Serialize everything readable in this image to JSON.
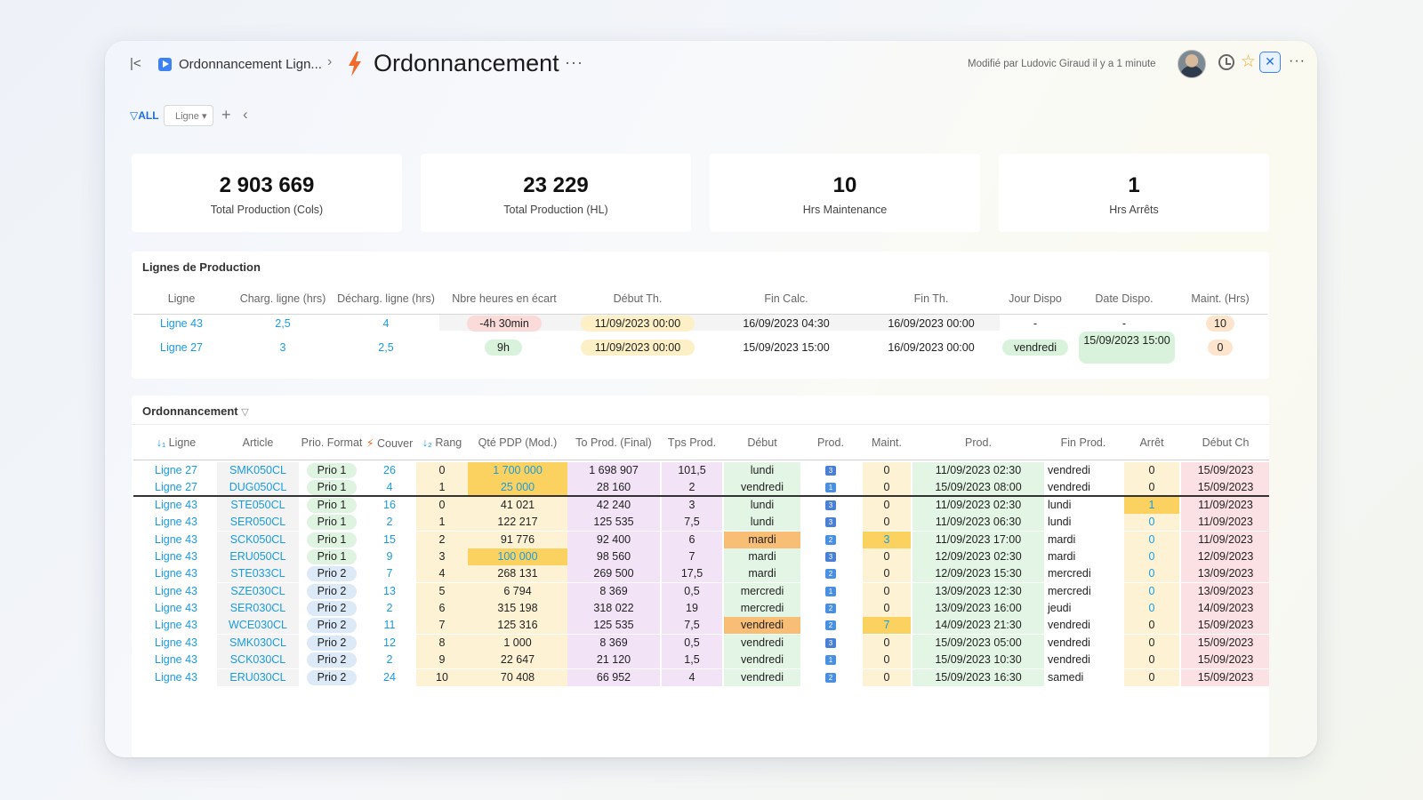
{
  "header": {
    "breadcrumb_parent": "Ordonnancement Lign...",
    "title": "Ordonnancement",
    "modified": "Modifié par Ludovic Giraud il y a 1 minute"
  },
  "filters": {
    "all_label": "ALL",
    "select_label": "Ligne ▾"
  },
  "kpis": [
    {
      "value": "2 903 669",
      "label": "Total Production (Cols)"
    },
    {
      "value": "23 229",
      "label": "Total Production (HL)"
    },
    {
      "value": "10",
      "label": "Hrs Maintenance"
    },
    {
      "value": "1",
      "label": "Hrs Arrêts"
    }
  ],
  "lignes": {
    "title": "Lignes de Production",
    "columns": [
      "Ligne",
      "Charg. ligne (hrs)",
      "Décharg. ligne (hrs)",
      "Nbre heures en écart",
      "Début Th.",
      "Fin Calc.",
      "Fin Th.",
      "Jour Dispo",
      "Date Dispo.",
      "Maint. (Hrs)"
    ],
    "rows": [
      [
        "Ligne 43",
        "2,5",
        "4",
        "-4h 30min",
        "11/09/2023 00:00",
        "16/09/2023 04:30",
        "16/09/2023 00:00",
        "-",
        "-",
        "10"
      ],
      [
        "Ligne 27",
        "3",
        "2,5",
        "9h",
        "11/09/2023 00:00",
        "15/09/2023 15:00",
        "16/09/2023 00:00",
        "vendredi",
        "15/09/2023 15:00",
        "0"
      ]
    ]
  },
  "ordo": {
    "title": "Ordonnancement",
    "columns": [
      "Ligne",
      "Article",
      "Prio. Format",
      "Couver",
      "Rang",
      "Qté PDP (Mod.)",
      "To Prod. (Final)",
      "Tps Prod.",
      "Début",
      "Prod.",
      "Maint.",
      "Prod.",
      "Fin Prod.",
      "Arrêt",
      "Début Ch"
    ],
    "rows": [
      {
        "ligne": "Ligne 27",
        "article": "SMK050CL",
        "prio": "Prio 1",
        "couver": "26",
        "rang": "0",
        "qte": "1 700 000",
        "toprod": "1 698 907",
        "tps": "101,5",
        "debut": "lundi",
        "prod": "3",
        "maint": "0",
        "prodt": "11/09/2023 02:30",
        "fin": "vendredi",
        "arret": "0",
        "debutch": "15/09/2023"
      },
      {
        "ligne": "Ligne 27",
        "article": "DUG050CL",
        "prio": "Prio 1",
        "couver": "4",
        "rang": "1",
        "qte": "25 000",
        "toprod": "28 160",
        "tps": "2",
        "debut": "vendredi",
        "prod": "1",
        "maint": "0",
        "prodt": "15/09/2023 08:00",
        "fin": "vendredi",
        "arret": "0",
        "debutch": "15/09/2023"
      },
      {
        "ligne": "Ligne 43",
        "article": "STE050CL",
        "prio": "Prio 1",
        "couver": "16",
        "rang": "0",
        "qte": "41 021",
        "toprod": "42 240",
        "tps": "3",
        "debut": "lundi",
        "prod": "3",
        "maint": "0",
        "prodt": "11/09/2023 02:30",
        "fin": "lundi",
        "arret": "1",
        "debutch": "11/09/2023"
      },
      {
        "ligne": "Ligne 43",
        "article": "SER050CL",
        "prio": "Prio 1",
        "couver": "2",
        "rang": "1",
        "qte": "122 217",
        "toprod": "125 535",
        "tps": "7,5",
        "debut": "lundi",
        "prod": "3",
        "maint": "0",
        "prodt": "11/09/2023 06:30",
        "fin": "lundi",
        "arret": "0",
        "debutch": "11/09/2023"
      },
      {
        "ligne": "Ligne 43",
        "article": "SCK050CL",
        "prio": "Prio 1",
        "couver": "15",
        "rang": "2",
        "qte": "91 776",
        "toprod": "92 400",
        "tps": "6",
        "debut": "mardi",
        "prod": "2",
        "maint": "3",
        "prodt": "11/09/2023 17:00",
        "fin": "mardi",
        "arret": "0",
        "debutch": "11/09/2023"
      },
      {
        "ligne": "Ligne 43",
        "article": "ERU050CL",
        "prio": "Prio 1",
        "couver": "9",
        "rang": "3",
        "qte": "100 000",
        "toprod": "98 560",
        "tps": "7",
        "debut": "mardi",
        "prod": "3",
        "maint": "0",
        "prodt": "12/09/2023 02:30",
        "fin": "mardi",
        "arret": "0",
        "debutch": "12/09/2023"
      },
      {
        "ligne": "Ligne 43",
        "article": "STE033CL",
        "prio": "Prio 2",
        "couver": "7",
        "rang": "4",
        "qte": "268 131",
        "toprod": "269 500",
        "tps": "17,5",
        "debut": "mardi",
        "prod": "2",
        "maint": "0",
        "prodt": "12/09/2023 15:30",
        "fin": "mercredi",
        "arret": "0",
        "debutch": "13/09/2023"
      },
      {
        "ligne": "Ligne 43",
        "article": "SZE030CL",
        "prio": "Prio 2",
        "couver": "13",
        "rang": "5",
        "qte": "6 794",
        "toprod": "8 369",
        "tps": "0,5",
        "debut": "mercredi",
        "prod": "1",
        "maint": "0",
        "prodt": "13/09/2023 12:30",
        "fin": "mercredi",
        "arret": "0",
        "debutch": "13/09/2023"
      },
      {
        "ligne": "Ligne 43",
        "article": "SER030CL",
        "prio": "Prio 2",
        "couver": "2",
        "rang": "6",
        "qte": "315 198",
        "toprod": "318 022",
        "tps": "19",
        "debut": "mercredi",
        "prod": "2",
        "maint": "0",
        "prodt": "13/09/2023 16:00",
        "fin": "jeudi",
        "arret": "0",
        "debutch": "14/09/2023"
      },
      {
        "ligne": "Ligne 43",
        "article": "WCE030CL",
        "prio": "Prio 2",
        "couver": "11",
        "rang": "7",
        "qte": "125 316",
        "toprod": "125 535",
        "tps": "7,5",
        "debut": "vendredi",
        "prod": "2",
        "maint": "7",
        "prodt": "14/09/2023 21:30",
        "fin": "vendredi",
        "arret": "0",
        "debutch": "15/09/2023"
      },
      {
        "ligne": "Ligne 43",
        "article": "SMK030CL",
        "prio": "Prio 2",
        "couver": "12",
        "rang": "8",
        "qte": "1 000",
        "toprod": "8 369",
        "tps": "0,5",
        "debut": "vendredi",
        "prod": "3",
        "maint": "0",
        "prodt": "15/09/2023 05:00",
        "fin": "vendredi",
        "arret": "0",
        "debutch": "15/09/2023"
      },
      {
        "ligne": "Ligne 43",
        "article": "SCK030CL",
        "prio": "Prio 2",
        "couver": "2",
        "rang": "9",
        "qte": "22 647",
        "toprod": "21 120",
        "tps": "1,5",
        "debut": "vendredi",
        "prod": "1",
        "maint": "0",
        "prodt": "15/09/2023 10:30",
        "fin": "vendredi",
        "arret": "0",
        "debutch": "15/09/2023"
      },
      {
        "ligne": "Ligne 43",
        "article": "ERU030CL",
        "prio": "Prio 2",
        "couver": "24",
        "rang": "10",
        "qte": "70 408",
        "toprod": "66 952",
        "tps": "4",
        "debut": "vendredi",
        "prod": "2",
        "maint": "0",
        "prodt": "15/09/2023 16:30",
        "fin": "samedi",
        "arret": "0",
        "debutch": "15/09/2023"
      }
    ]
  },
  "colors": {
    "accent": "#1a9be0",
    "qte_highlight": "#fbd25f",
    "debut_highlight": "#f8be75",
    "maint_highlight": "#fbd25f",
    "arret_highlight": "#fbd25f"
  }
}
